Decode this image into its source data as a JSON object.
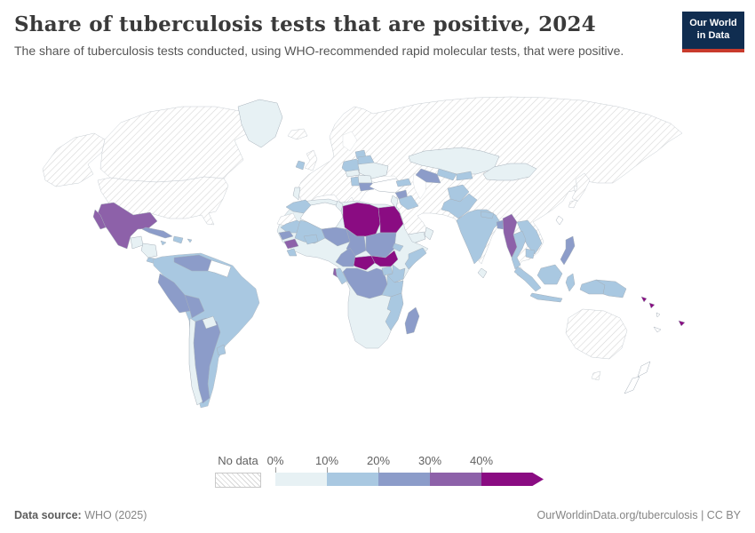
{
  "header": {
    "title": "Share of tuberculosis tests that are positive, 2024",
    "subtitle": "The share of tuberculosis tests conducted, using WHO-recommended rapid molecular tests, that were positive."
  },
  "logo": {
    "line1": "Our World",
    "line2": "in Data",
    "bg_color": "#102d50",
    "accent_color": "#c93b2c"
  },
  "chart_data": {
    "type": "choropleth-map",
    "title": "Share of tuberculosis tests that are positive",
    "year": "2024",
    "unit": "%",
    "legend": {
      "no_data_label": "No data",
      "bins": [
        {
          "id": "0-10",
          "label": "0%",
          "color": "#e7f1f4"
        },
        {
          "id": "10-20",
          "label": "10%",
          "color": "#a9c8e1"
        },
        {
          "id": "20-30",
          "label": "20%",
          "color": "#8c9cc9"
        },
        {
          "id": "30-40",
          "label": "30%",
          "color": "#8d61a9",
          "": ""
        },
        {
          "id": "40+",
          "label": "40%",
          "color": "#8a0c82",
          "arrow": true
        }
      ]
    },
    "countries": [
      {
        "id": "canada",
        "name": "Canada",
        "bin": "no-data"
      },
      {
        "id": "united-states",
        "name": "United States",
        "bin": "no-data"
      },
      {
        "id": "eurasia-no-data",
        "name": "Russia, China, Western Europe, Iran, Saudi Arabia & others",
        "bin": "no-data"
      },
      {
        "id": "iceland",
        "name": "Iceland",
        "bin": "no-data"
      },
      {
        "id": "united-kingdom",
        "name": "United Kingdom",
        "bin": "no-data"
      },
      {
        "id": "japan",
        "name": "Japan",
        "bin": "no-data"
      },
      {
        "id": "south-korea",
        "name": "South Korea",
        "bin": "no-data"
      },
      {
        "id": "australia",
        "name": "Australia",
        "bin": "no-data"
      },
      {
        "id": "western-sahara",
        "name": "Western Sahara",
        "bin": "no-data"
      },
      {
        "id": "turkey",
        "name": "Turkey",
        "bin": "no-data",
        "style": "plain"
      },
      {
        "id": "algeria",
        "name": "Algeria",
        "bin": "no-data",
        "style": "plain"
      },
      {
        "id": "taiwan",
        "name": "Taiwan",
        "bin": "no-data",
        "style": "plain"
      },
      {
        "id": "new-zealand",
        "name": "New Zealand",
        "bin": "no-data",
        "style": "plain"
      },
      {
        "id": "guyana-suriname",
        "name": "Guyana & Suriname",
        "bin": "no-data",
        "style": "plain"
      },
      {
        "id": "vanuatu",
        "name": "Vanuatu",
        "bin": "no-data",
        "style": "plain"
      },
      {
        "id": "new-caledonia",
        "name": "New Caledonia",
        "bin": "no-data",
        "style": "plain"
      },
      {
        "id": "greenland",
        "name": "Greenland",
        "bin": "0-10"
      },
      {
        "id": "guatemala",
        "name": "Guatemala",
        "bin": "0-10"
      },
      {
        "id": "honduras-nicaragua",
        "name": "Honduras & Nicaragua",
        "bin": "0-10"
      },
      {
        "id": "chile",
        "name": "Chile",
        "bin": "0-10"
      },
      {
        "id": "paraguay",
        "name": "Paraguay",
        "bin": "0-10"
      },
      {
        "id": "portugal",
        "name": "Portugal",
        "bin": "0-10"
      },
      {
        "id": "czechia",
        "name": "Czechia",
        "bin": "0-10"
      },
      {
        "id": "ukraine",
        "name": "Ukraine",
        "bin": "0-10"
      },
      {
        "id": "romania",
        "name": "Romania",
        "bin": "0-10"
      },
      {
        "id": "kazakhstan",
        "name": "Kazakhstan",
        "bin": "0-10"
      },
      {
        "id": "mongolia",
        "name": "Mongolia",
        "bin": "0-10"
      },
      {
        "id": "tunisia",
        "name": "Tunisia",
        "bin": "0-10"
      },
      {
        "id": "yemen",
        "name": "Yemen",
        "bin": "0-10"
      },
      {
        "id": "oman",
        "name": "Oman",
        "bin": "0-10"
      },
      {
        "id": "jordan-israel",
        "name": "Jordan & Israel",
        "bin": "0-10"
      },
      {
        "id": "sri-lanka",
        "name": "Sri Lanka",
        "bin": "0-10"
      },
      {
        "id": "africa-base",
        "name": "Nigeria, Ethiopia, Ghana, Angola, Zambia, Zimbabwe, Namibia, Botswana, South Africa & others",
        "bin": "0-10"
      },
      {
        "id": "ireland",
        "name": "Ireland",
        "bin": "10-20"
      },
      {
        "id": "poland",
        "name": "Poland",
        "bin": "10-20"
      },
      {
        "id": "lithuania",
        "name": "Lithuania",
        "bin": "10-20"
      },
      {
        "id": "belarus",
        "name": "Belarus",
        "bin": "10-20"
      },
      {
        "id": "serbia",
        "name": "Serbia",
        "bin": "10-20"
      },
      {
        "id": "caucasus",
        "name": "Georgia & Azerbaijan",
        "bin": "10-20"
      },
      {
        "id": "iraq",
        "name": "Iraq",
        "bin": "10-20"
      },
      {
        "id": "uzbekistan",
        "name": "Uzbekistan",
        "bin": "10-20"
      },
      {
        "id": "kyrgyzstan-tajikistan",
        "name": "Kyrgyzstan & Tajikistan",
        "bin": "10-20"
      },
      {
        "id": "afghanistan",
        "name": "Afghanistan",
        "bin": "10-20"
      },
      {
        "id": "pakistan",
        "name": "Pakistan",
        "bin": "10-20"
      },
      {
        "id": "india",
        "name": "India",
        "bin": "10-20"
      },
      {
        "id": "nepal",
        "name": "Nepal",
        "bin": "10-20"
      },
      {
        "id": "thailand",
        "name": "Thailand",
        "bin": "10-20"
      },
      {
        "id": "laos-vietnam",
        "name": "Laos & Vietnam",
        "bin": "10-20"
      },
      {
        "id": "cambodia",
        "name": "Cambodia",
        "bin": "10-20"
      },
      {
        "id": "malaysia",
        "name": "Malaysia",
        "bin": "10-20"
      },
      {
        "id": "indonesia",
        "name": "Indonesia",
        "bin": "10-20"
      },
      {
        "id": "papua-new-guinea",
        "name": "Papua New Guinea",
        "bin": "10-20"
      },
      {
        "id": "morocco",
        "name": "Morocco",
        "bin": "10-20"
      },
      {
        "id": "mauritania",
        "name": "Mauritania",
        "bin": "10-20"
      },
      {
        "id": "mali",
        "name": "Mali",
        "bin": "10-20"
      },
      {
        "id": "burkina-faso",
        "name": "Burkina Faso",
        "bin": "10-20"
      },
      {
        "id": "sierra-leone",
        "name": "Sierra Leone & Liberia",
        "bin": "10-20"
      },
      {
        "id": "eritrea",
        "name": "Eritrea",
        "bin": "10-20"
      },
      {
        "id": "somalia",
        "name": "Somalia",
        "bin": "10-20"
      },
      {
        "id": "kenya",
        "name": "Kenya",
        "bin": "10-20"
      },
      {
        "id": "uganda",
        "name": "Uganda",
        "bin": "10-20"
      },
      {
        "id": "tanzania",
        "name": "Tanzania",
        "bin": "10-20"
      },
      {
        "id": "mozambique",
        "name": "Mozambique & Malawi",
        "bin": "10-20"
      },
      {
        "id": "congo",
        "name": "Congo",
        "bin": "10-20"
      },
      {
        "id": "costa-rica-panama",
        "name": "Costa Rica & Panama",
        "bin": "10-20"
      },
      {
        "id": "jamaica",
        "name": "Jamaica",
        "bin": "10-20"
      },
      {
        "id": "hispaniola",
        "name": "Dominican Republic & Haiti",
        "bin": "10-20"
      },
      {
        "id": "puerto-rico",
        "name": "Puerto Rico",
        "bin": "10-20"
      },
      {
        "id": "south-america-base",
        "name": "Brazil, Colombia, Ecuador & others",
        "bin": "10-20"
      },
      {
        "id": "uruguay",
        "name": "Uruguay",
        "bin": "10-20"
      },
      {
        "id": "cuba",
        "name": "Cuba",
        "bin": "20-30"
      },
      {
        "id": "venezuela",
        "name": "Venezuela",
        "bin": "20-30"
      },
      {
        "id": "peru",
        "name": "Peru",
        "bin": "20-30"
      },
      {
        "id": "bolivia",
        "name": "Bolivia",
        "bin": "20-30"
      },
      {
        "id": "argentina",
        "name": "Argentina",
        "bin": "20-30"
      },
      {
        "id": "bulgaria",
        "name": "Bulgaria",
        "bin": "20-30"
      },
      {
        "id": "syria",
        "name": "Syria",
        "bin": "20-30"
      },
      {
        "id": "turkmenistan",
        "name": "Turkmenistan",
        "bin": "20-30"
      },
      {
        "id": "niger",
        "name": "Niger",
        "bin": "20-30"
      },
      {
        "id": "chad",
        "name": "Chad",
        "bin": "20-30"
      },
      {
        "id": "sudan",
        "name": "Sudan",
        "bin": "20-30"
      },
      {
        "id": "senegal",
        "name": "Senegal",
        "bin": "20-30"
      },
      {
        "id": "cameroon",
        "name": "Cameroon",
        "bin": "20-30"
      },
      {
        "id": "dr-congo",
        "name": "Democratic Republic of Congo",
        "bin": "20-30"
      },
      {
        "id": "madagascar",
        "name": "Madagascar",
        "bin": "20-30"
      },
      {
        "id": "philippines",
        "name": "Philippines",
        "bin": "20-30"
      },
      {
        "id": "bangladesh",
        "name": "Bangladesh",
        "bin": "20-30"
      },
      {
        "id": "mexico",
        "name": "Mexico",
        "bin": "30-40"
      },
      {
        "id": "guinea",
        "name": "Guinea",
        "bin": "30-40"
      },
      {
        "id": "gabon",
        "name": "Gabon",
        "bin": "30-40"
      },
      {
        "id": "myanmar",
        "name": "Myanmar",
        "bin": "30-40"
      },
      {
        "id": "libya",
        "name": "Libya",
        "bin": "40+"
      },
      {
        "id": "egypt",
        "name": "Egypt",
        "bin": "40+"
      },
      {
        "id": "south-sudan",
        "name": "South Sudan",
        "bin": "40+"
      },
      {
        "id": "central-african-republic",
        "name": "Central African Republic",
        "bin": "40+"
      },
      {
        "id": "solomon-islands",
        "name": "Solomon Islands",
        "bin": "40+"
      },
      {
        "id": "fiji",
        "name": "Fiji",
        "bin": "40+"
      }
    ]
  },
  "footer": {
    "source_label": "Data source:",
    "source_value": " WHO (2025)",
    "link": "OurWorldinData.org/tuberculosis",
    "license": " | CC BY"
  }
}
